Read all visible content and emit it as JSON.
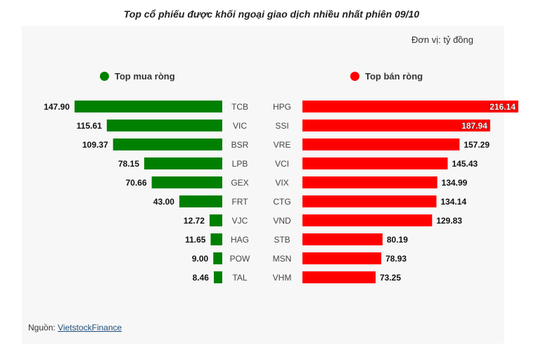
{
  "header": {
    "title": "Top cổ phiếu được khối ngoại giao dịch nhiều nhất phiên 09/10"
  },
  "unit_label": "Đơn vị: tỷ đồng",
  "legend": {
    "buy": "Top mua ròng",
    "sell": "Top bán ròng"
  },
  "source": {
    "label": "Nguồn: ",
    "link": "VietstockFinance"
  },
  "colors": {
    "buy": "#008000",
    "sell": "#ff0000",
    "panel": "#f7f7f7"
  },
  "chart_data": [
    {
      "type": "bar",
      "title": "Top mua ròng",
      "orientation": "horizontal-left",
      "categories": [
        "TCB",
        "VIC",
        "BSR",
        "LPB",
        "GEX",
        "FRT",
        "VJC",
        "HAG",
        "POW",
        "TAL"
      ],
      "values": [
        147.9,
        115.61,
        109.37,
        78.15,
        70.66,
        43.0,
        12.72,
        11.65,
        9.0,
        8.46
      ],
      "labels": [
        "147.90",
        "115.61",
        "109.37",
        "78.15",
        "70.66",
        "43.00",
        "12.72",
        "11.65",
        "9.00",
        "8.46"
      ],
      "color": "#008000"
    },
    {
      "type": "bar",
      "title": "Top bán ròng",
      "orientation": "horizontal-right",
      "categories": [
        "HPG",
        "SSI",
        "VRE",
        "VCI",
        "VIX",
        "CTG",
        "VND",
        "STB",
        "MSN",
        "VHM"
      ],
      "values": [
        216.14,
        187.94,
        157.29,
        145.43,
        134.99,
        134.14,
        129.83,
        80.19,
        78.93,
        73.25
      ],
      "labels": [
        "216.14",
        "187.94",
        "157.29",
        "145.43",
        "134.99",
        "134.14",
        "129.83",
        "80.19",
        "78.93",
        "73.25"
      ],
      "color": "#ff0000"
    }
  ]
}
